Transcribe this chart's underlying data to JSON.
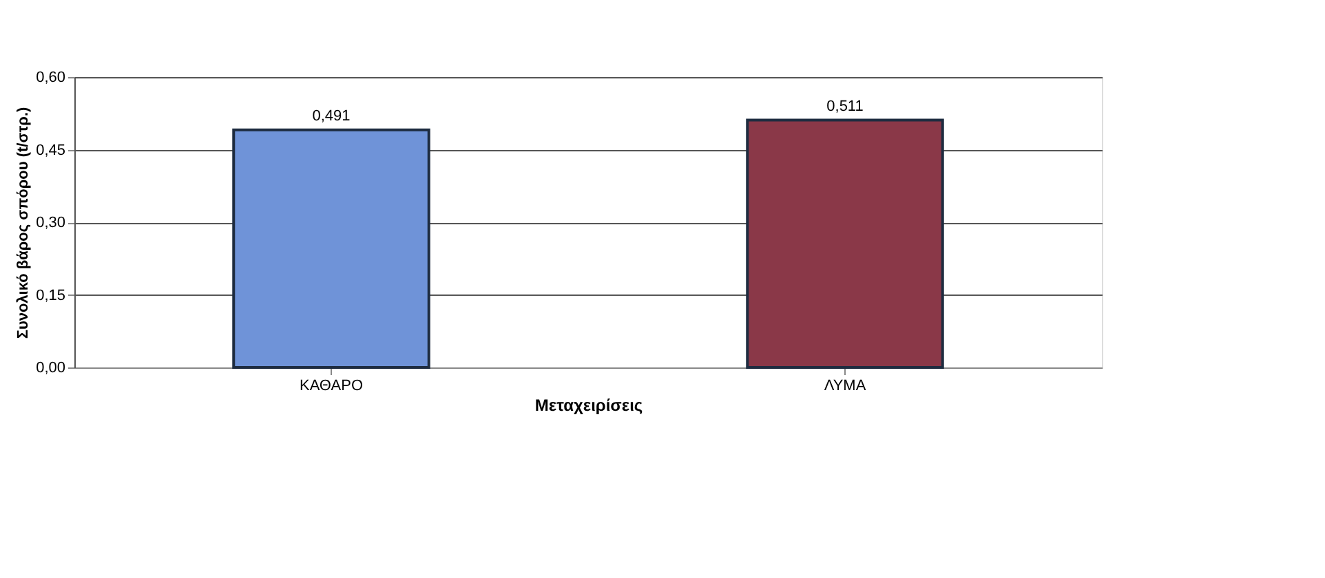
{
  "chart_data": {
    "type": "bar",
    "xlabel": "Μεταχειρίσεις",
    "ylabel": "Συνολικό βάρος σπόρου (t/στρ.)",
    "categories": [
      "ΚΑΘΑΡΟ",
      "ΛΥΜΑ"
    ],
    "values": [
      0.491,
      0.511
    ],
    "colors": [
      "#6f93d8",
      "#8a3848"
    ],
    "value_labels": [
      "0,491",
      "0,511"
    ],
    "ylim": [
      0,
      0.6
    ],
    "yticks": [
      {
        "value": 0,
        "label": "0,00"
      },
      {
        "value": 0.15,
        "label": "0,15"
      },
      {
        "value": 0.3,
        "label": "0,30"
      },
      {
        "value": 0.45,
        "label": "0,45"
      },
      {
        "value": 0.6,
        "label": "0,60"
      }
    ],
    "grid": "y",
    "legend": false
  }
}
